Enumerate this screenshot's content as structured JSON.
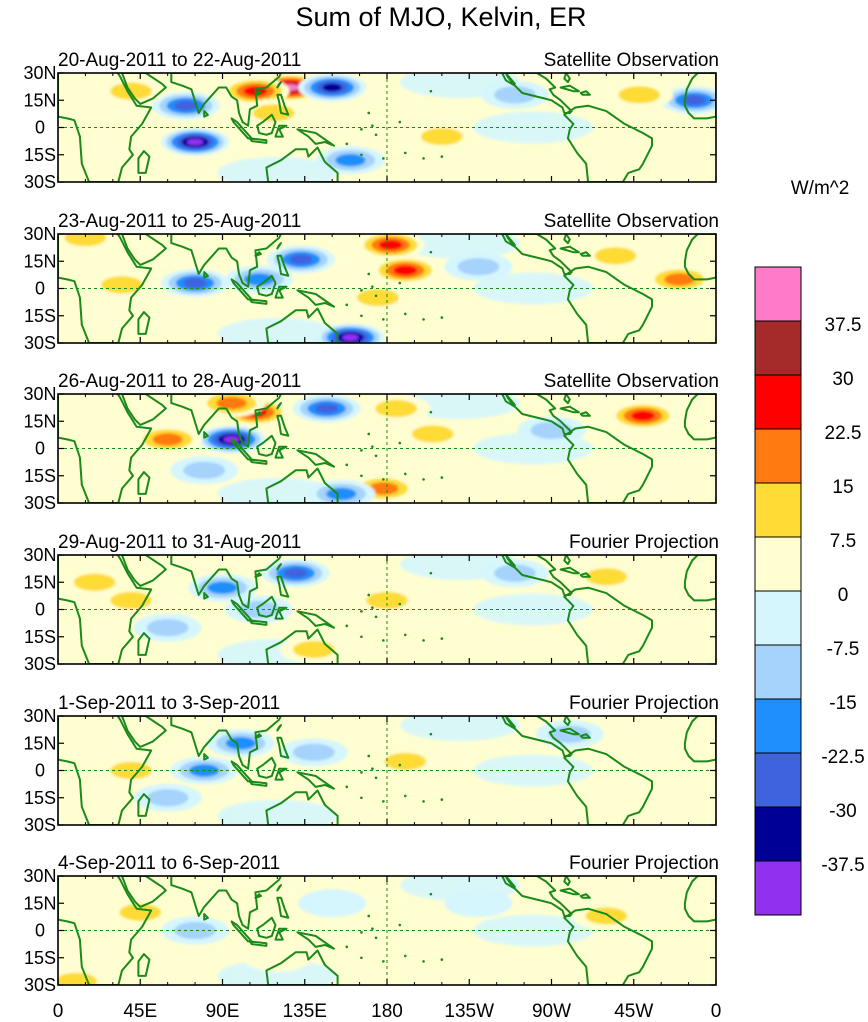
{
  "chart_data": {
    "type": "heatmap",
    "title": "Sum of MJO, Kelvin, ER",
    "units": "W/m^2",
    "x_tick_labels": [
      "0",
      "45E",
      "90E",
      "135E",
      "180",
      "135W",
      "90W",
      "45W",
      "0"
    ],
    "y_tick_labels": [
      "30N",
      "15N",
      "0",
      "15S",
      "30S"
    ],
    "xlim": [
      0,
      360
    ],
    "ylim": [
      -30,
      30
    ],
    "colorbar": {
      "levels": [
        "37.5",
        "30",
        "22.5",
        "15",
        "7.5",
        "0",
        "-7.5",
        "-15",
        "-22.5",
        "-30",
        "-37.5"
      ],
      "colors": [
        "#ff7ac8",
        "#a52a2a",
        "#ff0000",
        "#ff7a10",
        "#ffdb35",
        "#fffed0",
        "#d6f6fd",
        "#a5d3fc",
        "#1e8ffc",
        "#3f62dd",
        "#000096",
        "#9131ef"
      ]
    },
    "panels": [
      {
        "date": "20-Aug-2011 to 22-Aug-2011",
        "source": "Satellite Observation",
        "anomalies": [
          {
            "lon": 127,
            "lat": 22,
            "value": 42
          },
          {
            "lon": 108,
            "lat": 20,
            "value": 26
          },
          {
            "lon": 150,
            "lat": 22,
            "value": -32
          },
          {
            "lon": 70,
            "lat": 12,
            "value": -28
          },
          {
            "lon": 75,
            "lat": -8,
            "value": -38
          },
          {
            "lon": 160,
            "lat": -18,
            "value": -22
          },
          {
            "lon": 118,
            "lat": 8,
            "value": 14
          },
          {
            "lon": 210,
            "lat": -5,
            "value": 10
          },
          {
            "lon": 348,
            "lat": 15,
            "value": -24
          },
          {
            "lon": 318,
            "lat": 18,
            "value": 9
          },
          {
            "lon": 40,
            "lat": 20,
            "value": 9
          },
          {
            "lon": 250,
            "lat": 18,
            "value": -8
          }
        ]
      },
      {
        "date": "23-Aug-2011 to 25-Aug-2011",
        "source": "Satellite Observation",
        "anomalies": [
          {
            "lon": 190,
            "lat": 10,
            "value": 30
          },
          {
            "lon": 182,
            "lat": 24,
            "value": 24
          },
          {
            "lon": 133,
            "lat": 16,
            "value": -30
          },
          {
            "lon": 160,
            "lat": -27,
            "value": -40
          },
          {
            "lon": 75,
            "lat": 3,
            "value": -30
          },
          {
            "lon": 110,
            "lat": 5,
            "value": -22
          },
          {
            "lon": 35,
            "lat": 2,
            "value": 12
          },
          {
            "lon": 340,
            "lat": 5,
            "value": 22
          },
          {
            "lon": 305,
            "lat": 18,
            "value": 9
          },
          {
            "lon": 230,
            "lat": 12,
            "value": -10
          },
          {
            "lon": 175,
            "lat": -5,
            "value": 10
          },
          {
            "lon": 15,
            "lat": 28,
            "value": 10
          }
        ]
      },
      {
        "date": "26-Aug-2011 to 28-Aug-2011",
        "source": "Satellite Observation",
        "anomalies": [
          {
            "lon": 108,
            "lat": 20,
            "value": 26
          },
          {
            "lon": 95,
            "lat": 25,
            "value": 22
          },
          {
            "lon": 95,
            "lat": 5,
            "value": -38
          },
          {
            "lon": 147,
            "lat": 22,
            "value": -28
          },
          {
            "lon": 60,
            "lat": 5,
            "value": 18
          },
          {
            "lon": 178,
            "lat": -22,
            "value": 18
          },
          {
            "lon": 155,
            "lat": -25,
            "value": -22
          },
          {
            "lon": 320,
            "lat": 18,
            "value": 26
          },
          {
            "lon": 80,
            "lat": -12,
            "value": -14
          },
          {
            "lon": 205,
            "lat": 8,
            "value": 12
          },
          {
            "lon": 270,
            "lat": 10,
            "value": -14
          },
          {
            "lon": 185,
            "lat": 22,
            "value": 10
          }
        ]
      },
      {
        "date": "29-Aug-2011 to 31-Aug-2011",
        "source": "Fourier Projection",
        "anomalies": [
          {
            "lon": 130,
            "lat": 20,
            "value": -24
          },
          {
            "lon": 90,
            "lat": 12,
            "value": -18
          },
          {
            "lon": 110,
            "lat": 0,
            "value": -10
          },
          {
            "lon": 180,
            "lat": 5,
            "value": 14
          },
          {
            "lon": 40,
            "lat": 5,
            "value": 9
          },
          {
            "lon": 60,
            "lat": -10,
            "value": -8
          },
          {
            "lon": 300,
            "lat": 18,
            "value": 9
          },
          {
            "lon": 250,
            "lat": 20,
            "value": -8
          },
          {
            "lon": 140,
            "lat": -22,
            "value": 9
          },
          {
            "lon": 20,
            "lat": 15,
            "value": 8
          }
        ]
      },
      {
        "date": "1-Sep-2011 to 3-Sep-2011",
        "source": "Fourier Projection",
        "anomalies": [
          {
            "lon": 100,
            "lat": 15,
            "value": -20
          },
          {
            "lon": 80,
            "lat": 0,
            "value": -16
          },
          {
            "lon": 40,
            "lat": 0,
            "value": 10
          },
          {
            "lon": 140,
            "lat": 10,
            "value": -8
          },
          {
            "lon": 280,
            "lat": 20,
            "value": -9
          },
          {
            "lon": 190,
            "lat": 5,
            "value": 8
          },
          {
            "lon": 320,
            "lat": 15,
            "value": 7
          },
          {
            "lon": 60,
            "lat": -15,
            "value": -8
          }
        ]
      },
      {
        "date": "4-Sep-2011 to 6-Sep-2011",
        "source": "Fourier Projection",
        "anomalies": [
          {
            "lon": 45,
            "lat": 10,
            "value": 9
          },
          {
            "lon": 75,
            "lat": 0,
            "value": -9
          },
          {
            "lon": 300,
            "lat": 8,
            "value": 10
          },
          {
            "lon": 230,
            "lat": 15,
            "value": -7
          },
          {
            "lon": 150,
            "lat": 15,
            "value": -6
          },
          {
            "lon": 120,
            "lat": -15,
            "value": 6
          },
          {
            "lon": 10,
            "lat": -28,
            "value": 9
          }
        ]
      }
    ]
  }
}
